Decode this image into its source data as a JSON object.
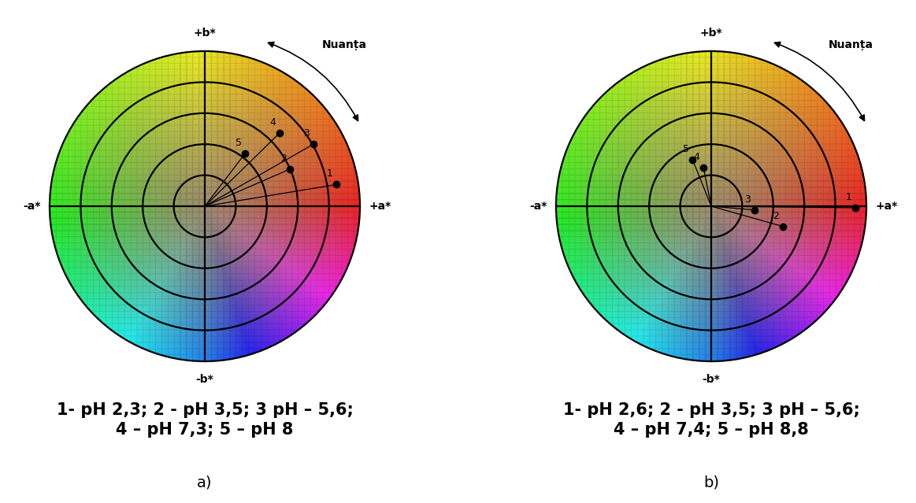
{
  "chart_data": [
    {
      "type": "scatter",
      "title": "a)",
      "caption": "1- pH 2,3; 2 - pH 3,5; 3 pH – 5,6;\n4 – pH 7,3; 5 – pH 8",
      "x": [
        4.25,
        2.75,
        3.5,
        2.4,
        1.3
      ],
      "values": [
        0.7,
        1.2,
        2.0,
        2.35,
        1.7
      ],
      "labels": [
        "1",
        "2",
        "3",
        "4",
        "5"
      ],
      "color": "#000000",
      "axis_labels": {
        "top": "+b*",
        "bottom": "-b*",
        "left": "-a*",
        "right": "+a*"
      },
      "annotation": "Nuanța",
      "rings": [
        1,
        2,
        3,
        4,
        5
      ],
      "tick_labels": false
    },
    {
      "type": "scatter",
      "title": "b)",
      "caption": "1- pH 2,6; 2 - pH 3,5; 3 pH – 5,6;\n4 – pH 7,4; 5 – pH 8,8",
      "x": [
        4.65,
        2.3,
        1.4,
        -0.25,
        -0.6
      ],
      "values": [
        -0.05,
        -0.65,
        -0.12,
        1.25,
        1.5
      ],
      "labels": [
        "1",
        "2",
        "3",
        "4",
        "5"
      ],
      "color": "#000000",
      "axis_labels": {
        "top": "+b*",
        "bottom": "-b*",
        "left": "-a*",
        "right": "+a*"
      },
      "annotation": "Nuanța",
      "rings": [
        1,
        2,
        3,
        4,
        5
      ],
      "tick_labels": false
    }
  ]
}
